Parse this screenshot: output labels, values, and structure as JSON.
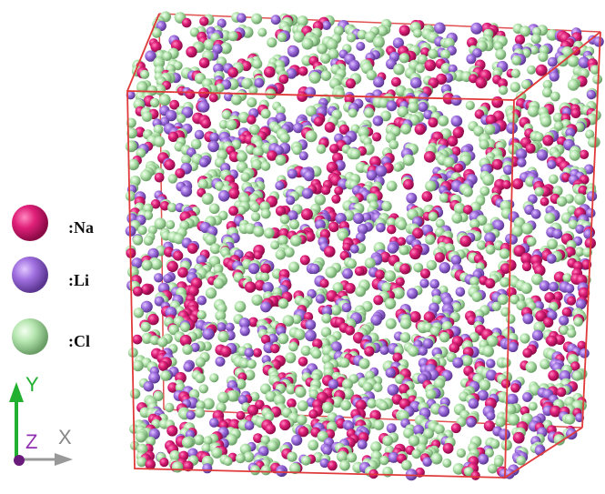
{
  "legend": [
    {
      "label": ":Na"
    },
    {
      "label": ":Li"
    },
    {
      "label": ":Cl"
    }
  ],
  "axes": {
    "y": "Y",
    "z": "Z",
    "x": "X"
  }
}
